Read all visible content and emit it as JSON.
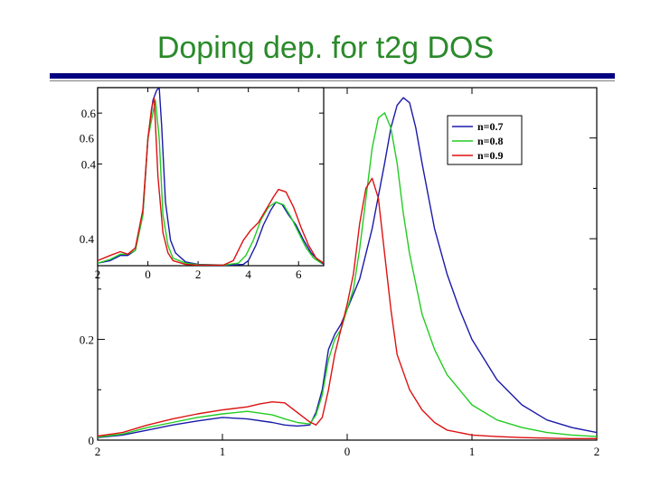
{
  "slide": {
    "title": "Doping dep. for t2g DOS"
  },
  "chart_data": [
    {
      "type": "line",
      "role": "main",
      "xlim": [
        -2,
        2
      ],
      "ylim": [
        0,
        0.7
      ],
      "x_ticks": [
        -2,
        -1,
        0,
        1,
        2
      ],
      "x_tick_labels": [
        "2",
        "1",
        "0",
        "1",
        "2"
      ],
      "y_ticks": [
        0,
        0.2,
        0.4,
        0.6
      ],
      "y_tick_labels": [
        "0",
        "0.2",
        "0.4",
        "0.6"
      ],
      "legend_position": "top-right",
      "series": [
        {
          "name": "n=0.7",
          "color": "#1a1aaa",
          "x": [
            -2.0,
            -1.8,
            -1.6,
            -1.4,
            -1.2,
            -1.0,
            -0.8,
            -0.6,
            -0.5,
            -0.4,
            -0.3,
            -0.25,
            -0.2,
            -0.15,
            -0.1,
            -0.05,
            0.0,
            0.1,
            0.2,
            0.3,
            0.35,
            0.4,
            0.45,
            0.5,
            0.55,
            0.6,
            0.7,
            0.8,
            0.9,
            1.0,
            1.2,
            1.4,
            1.6,
            1.8,
            2.0
          ],
          "y": [
            0.005,
            0.01,
            0.02,
            0.03,
            0.038,
            0.045,
            0.042,
            0.035,
            0.03,
            0.028,
            0.03,
            0.055,
            0.1,
            0.18,
            0.21,
            0.23,
            0.26,
            0.32,
            0.42,
            0.55,
            0.62,
            0.665,
            0.68,
            0.67,
            0.62,
            0.55,
            0.42,
            0.33,
            0.26,
            0.2,
            0.12,
            0.07,
            0.04,
            0.025,
            0.015
          ]
        },
        {
          "name": "n=0.8",
          "color": "#22cc22",
          "x": [
            -2.0,
            -1.8,
            -1.6,
            -1.4,
            -1.2,
            -1.0,
            -0.8,
            -0.6,
            -0.5,
            -0.4,
            -0.3,
            -0.25,
            -0.2,
            -0.15,
            -0.1,
            -0.05,
            0.0,
            0.05,
            0.1,
            0.15,
            0.2,
            0.25,
            0.3,
            0.35,
            0.4,
            0.45,
            0.5,
            0.6,
            0.7,
            0.8,
            1.0,
            1.2,
            1.4,
            1.6,
            1.8,
            2.0
          ],
          "y": [
            0.006,
            0.012,
            0.025,
            0.035,
            0.045,
            0.052,
            0.057,
            0.05,
            0.042,
            0.035,
            0.032,
            0.05,
            0.09,
            0.16,
            0.2,
            0.22,
            0.26,
            0.3,
            0.38,
            0.48,
            0.58,
            0.64,
            0.65,
            0.62,
            0.55,
            0.45,
            0.37,
            0.25,
            0.18,
            0.13,
            0.07,
            0.04,
            0.025,
            0.015,
            0.01,
            0.007
          ]
        },
        {
          "name": "n=0.9",
          "color": "#dd1111",
          "x": [
            -2.0,
            -1.8,
            -1.6,
            -1.4,
            -1.2,
            -1.0,
            -0.8,
            -0.7,
            -0.6,
            -0.5,
            -0.4,
            -0.3,
            -0.25,
            -0.2,
            -0.15,
            -0.1,
            -0.05,
            0.0,
            0.05,
            0.1,
            0.15,
            0.2,
            0.25,
            0.3,
            0.35,
            0.4,
            0.5,
            0.6,
            0.7,
            0.8,
            1.0,
            1.2,
            1.4,
            1.6,
            1.8,
            2.0
          ],
          "y": [
            0.008,
            0.015,
            0.03,
            0.042,
            0.052,
            0.06,
            0.066,
            0.072,
            0.076,
            0.074,
            0.055,
            0.036,
            0.03,
            0.045,
            0.1,
            0.17,
            0.22,
            0.27,
            0.33,
            0.43,
            0.5,
            0.52,
            0.48,
            0.37,
            0.26,
            0.17,
            0.1,
            0.06,
            0.035,
            0.02,
            0.01,
            0.007,
            0.005,
            0.004,
            0.003,
            0.003
          ]
        }
      ]
    },
    {
      "type": "line",
      "role": "inset",
      "xlim": [
        -2,
        7
      ],
      "ylim": [
        0,
        0.7
      ],
      "x_ticks": [
        -2,
        0,
        2,
        4,
        6
      ],
      "x_tick_labels": [
        "2",
        "0",
        "2",
        "4",
        "6"
      ],
      "y_ticks": [
        0.4,
        0.6
      ],
      "y_tick_labels": [
        "0.4",
        "0.6"
      ],
      "series": [
        {
          "name": "n=0.7",
          "color": "#1a1aaa",
          "x": [
            -2.0,
            -1.5,
            -1.1,
            -0.8,
            -0.5,
            -0.2,
            0.0,
            0.2,
            0.35,
            0.45,
            0.55,
            0.7,
            0.9,
            1.1,
            1.5,
            2.0,
            3.2,
            3.8,
            4.0,
            4.3,
            4.6,
            4.9,
            5.1,
            5.35,
            5.6,
            5.9,
            6.2,
            6.5,
            6.8,
            7.0
          ],
          "y": [
            0.01,
            0.02,
            0.04,
            0.04,
            0.06,
            0.2,
            0.5,
            0.65,
            0.69,
            0.7,
            0.55,
            0.25,
            0.1,
            0.05,
            0.015,
            0.005,
            0.002,
            0.005,
            0.02,
            0.08,
            0.16,
            0.22,
            0.25,
            0.24,
            0.2,
            0.16,
            0.1,
            0.05,
            0.02,
            0.005
          ]
        },
        {
          "name": "n=0.8",
          "color": "#22cc22",
          "x": [
            -2.0,
            -1.5,
            -1.1,
            -0.8,
            -0.5,
            -0.2,
            0.0,
            0.2,
            0.3,
            0.45,
            0.6,
            0.8,
            1.0,
            1.5,
            2.0,
            3.0,
            3.6,
            3.9,
            4.2,
            4.5,
            4.8,
            5.1,
            5.4,
            5.7,
            6.0,
            6.3,
            6.6,
            6.9
          ],
          "y": [
            0.01,
            0.025,
            0.045,
            0.045,
            0.06,
            0.2,
            0.5,
            0.6,
            0.65,
            0.5,
            0.2,
            0.08,
            0.03,
            0.01,
            0.004,
            0.002,
            0.01,
            0.04,
            0.1,
            0.18,
            0.23,
            0.25,
            0.24,
            0.19,
            0.13,
            0.07,
            0.03,
            0.01
          ]
        },
        {
          "name": "n=0.9",
          "color": "#dd1111",
          "x": [
            -2.0,
            -1.5,
            -1.1,
            -0.8,
            -0.5,
            -0.2,
            0.0,
            0.15,
            0.25,
            0.4,
            0.6,
            0.8,
            1.0,
            1.5,
            2.0,
            3.0,
            3.4,
            3.8,
            4.1,
            4.4,
            4.7,
            5.0,
            5.2,
            5.5,
            5.8,
            6.1,
            6.4,
            6.7,
            7.0
          ],
          "y": [
            0.02,
            0.04,
            0.055,
            0.045,
            0.07,
            0.22,
            0.5,
            0.62,
            0.66,
            0.35,
            0.13,
            0.05,
            0.02,
            0.005,
            0.002,
            0.002,
            0.02,
            0.1,
            0.14,
            0.17,
            0.22,
            0.27,
            0.3,
            0.29,
            0.23,
            0.15,
            0.08,
            0.03,
            0.01
          ]
        }
      ]
    }
  ]
}
